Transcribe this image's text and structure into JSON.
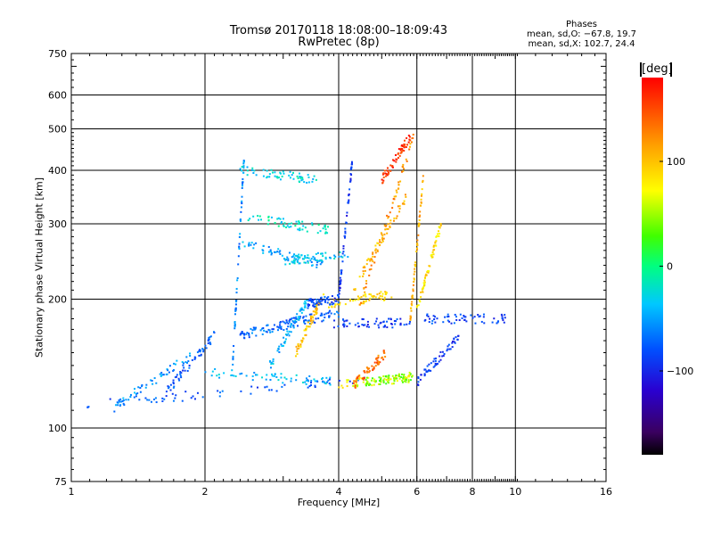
{
  "title": {
    "line1": "Tromsø 20170118 18:08:00–18:09:43",
    "line2": "RwPretec (8p)"
  },
  "phase_box": {
    "heading": "Phases",
    "line_o": "mean, sd,O: −67.8, 19.7",
    "line_x": "mean, sd,X: 102.7, 24.4"
  },
  "colorbar": {
    "unit_label": "[deg]",
    "ticks": [
      {
        "value": 100,
        "label": "100"
      },
      {
        "value": 0,
        "label": "0"
      },
      {
        "value": -100,
        "label": "−100"
      }
    ],
    "range": [
      -180,
      180
    ],
    "colors": [
      "#000000",
      "#4b0082",
      "#0000ff",
      "#0096ff",
      "#00e5e5",
      "#00ff00",
      "#ffff00",
      "#ff9000",
      "#ff0000"
    ]
  },
  "chart_data": {
    "type": "scatter",
    "xlabel": "Frequency [MHz]",
    "ylabel": "Stationary phase Virtual Height [km]",
    "x_scale": "log",
    "y_scale": "log",
    "xlim": [
      1,
      16
    ],
    "ylim": [
      75,
      750
    ],
    "x_ticks": [
      {
        "value": 1,
        "label": "1"
      },
      {
        "value": 2,
        "label": "2"
      },
      {
        "value": 4,
        "label": "4"
      },
      {
        "value": 6,
        "label": "6"
      },
      {
        "value": 8,
        "label": "8"
      },
      {
        "value": 10,
        "label": "10"
      },
      {
        "value": 16,
        "label": "16"
      }
    ],
    "y_ticks": [
      {
        "value": 75,
        "label": "75"
      },
      {
        "value": 100,
        "label": "100"
      },
      {
        "value": 200,
        "label": "200"
      },
      {
        "value": 300,
        "label": "300"
      },
      {
        "value": 400,
        "label": "400"
      },
      {
        "value": 500,
        "label": "500"
      },
      {
        "value": 600,
        "label": "600"
      },
      {
        "value": 750,
        "label": "750"
      }
    ],
    "grid": true,
    "color_variable": "phase [deg]",
    "series": [
      {
        "freq_range": [
          1.08,
          4.6
        ],
        "height_start": 113,
        "height_end": 130,
        "phase": -80
      },
      {
        "freq_range": [
          4.0,
          5.8
        ],
        "height_start": 127,
        "height_end": 131,
        "phase": 70
      },
      {
        "freq_range": [
          4.6,
          5.9
        ],
        "height_start": 128,
        "height_end": 132,
        "phase": 40
      },
      {
        "freq_range": [
          1.6,
          2.1
        ],
        "height_start": 118,
        "height_end": 165,
        "phase": -80
      },
      {
        "freq_range": [
          1.25,
          1.9
        ],
        "height_start": 112,
        "height_end": 150,
        "phase": -55
      },
      {
        "freq_range": [
          2.0,
          3.9
        ],
        "height_start": 135,
        "height_end": 128,
        "phase": -40
      },
      {
        "freq_range": [
          2.4,
          3.1
        ],
        "height_start": 165,
        "height_end": 175,
        "phase": -70
      },
      {
        "freq_range": [
          3.0,
          4.0
        ],
        "height_start": 175,
        "height_end": 185,
        "phase": -75
      },
      {
        "freq_range": [
          3.9,
          5.8
        ],
        "height_start": 176,
        "height_end": 176,
        "phase": -90
      },
      {
        "freq_range": [
          6.2,
          9.6
        ],
        "height_start": 180,
        "height_end": 180,
        "phase": -85
      },
      {
        "freq_range": [
          3.8,
          5.3
        ],
        "height_start": 195,
        "height_end": 205,
        "phase": 90
      },
      {
        "freq_range": [
          3.2,
          3.7
        ],
        "height_start": 150,
        "height_end": 205,
        "phase": 100
      },
      {
        "freq_range": [
          4.3,
          5.1
        ],
        "height_start": 125,
        "height_end": 150,
        "phase": 135
      },
      {
        "freq_range": [
          2.3,
          2.45
        ],
        "height_start": 130,
        "height_end": 430,
        "phase": -60
      },
      {
        "freq_range": [
          2.4,
          3.7
        ],
        "height_start": 270,
        "height_end": 240,
        "phase": -50
      },
      {
        "freq_range": [
          2.5,
          3.8
        ],
        "height_start": 310,
        "height_end": 290,
        "phase": -20
      },
      {
        "freq_range": [
          2.4,
          3.6
        ],
        "height_start": 400,
        "height_end": 380,
        "phase": -30
      },
      {
        "freq_range": [
          3.0,
          4.2
        ],
        "height_start": 245,
        "height_end": 255,
        "phase": -35
      },
      {
        "freq_range": [
          4.0,
          4.3
        ],
        "height_start": 200,
        "height_end": 430,
        "phase": -95
      },
      {
        "freq_range": [
          4.4,
          5.9
        ],
        "height_start": 185,
        "height_end": 480,
        "phase": 120
      },
      {
        "freq_range": [
          4.3,
          5.7
        ],
        "height_start": 210,
        "height_end": 350,
        "phase": 105
      },
      {
        "freq_range": [
          5.0,
          5.8
        ],
        "height_start": 380,
        "height_end": 480,
        "phase": 160
      },
      {
        "freq_range": [
          6.0,
          6.8
        ],
        "height_start": 190,
        "height_end": 300,
        "phase": 85
      },
      {
        "freq_range": [
          5.8,
          6.2
        ],
        "height_start": 180,
        "height_end": 380,
        "phase": 110
      },
      {
        "freq_range": [
          6.0,
          7.5
        ],
        "height_start": 128,
        "height_end": 165,
        "phase": -90
      },
      {
        "freq_range": [
          2.8,
          3.4
        ],
        "height_start": 140,
        "height_end": 200,
        "phase": -45
      },
      {
        "freq_range": [
          3.4,
          4.0
        ],
        "height_start": 195,
        "height_end": 200,
        "phase": -85
      }
    ]
  }
}
